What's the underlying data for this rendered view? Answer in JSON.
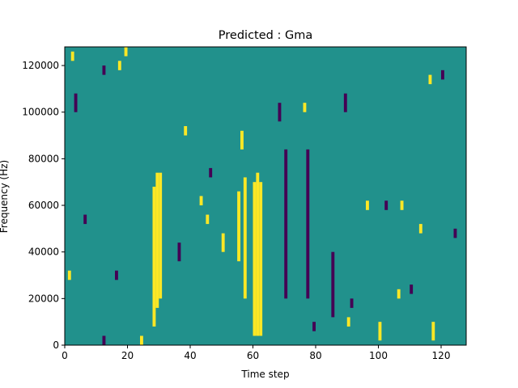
{
  "chart_data": {
    "type": "heatmap",
    "title": "Predicted : Gma",
    "xlabel": "Time step",
    "ylabel": "Frequency (Hz)",
    "xlim": [
      0,
      128
    ],
    "ylim": [
      0,
      128000
    ],
    "x_ticks": [
      0,
      20,
      40,
      60,
      80,
      100,
      120
    ],
    "y_ticks": [
      0,
      20000,
      40000,
      60000,
      80000,
      100000,
      120000
    ],
    "x_tick_labels": [
      "0",
      "20",
      "40",
      "60",
      "80",
      "100",
      "120"
    ],
    "y_tick_labels": [
      "0",
      "20000",
      "40000",
      "60000",
      "80000",
      "100000",
      "120000"
    ],
    "grid": false,
    "colormap": "viridis",
    "levels": {
      "low": "#440154",
      "mid": "#21918c",
      "high": "#fde725"
    },
    "background_level": "mid",
    "dense_columns": [
      {
        "level": "high",
        "x": 60,
        "y": [
          4000,
          70000
        ]
      },
      {
        "level": "high",
        "x": 61,
        "y": [
          4000,
          74000
        ]
      },
      {
        "level": "high",
        "x": 62,
        "y": [
          4000,
          70000
        ]
      },
      {
        "level": "high",
        "x": 28,
        "y": [
          8000,
          68000
        ]
      },
      {
        "level": "high",
        "x": 29,
        "y": [
          16000,
          74000
        ]
      },
      {
        "level": "high",
        "x": 30,
        "y": [
          20000,
          74000
        ]
      },
      {
        "level": "low",
        "x": 70,
        "y": [
          20000,
          84000
        ]
      },
      {
        "level": "low",
        "x": 77,
        "y": [
          20000,
          84000
        ]
      },
      {
        "level": "high",
        "x": 57,
        "y": [
          20000,
          72000
        ]
      },
      {
        "level": "high",
        "x": 55,
        "y": [
          36000,
          66000
        ]
      },
      {
        "level": "low",
        "x": 85,
        "y": [
          12000,
          40000
        ]
      }
    ],
    "scattered_cells": [
      {
        "level": "low",
        "x": 3,
        "y": 108000,
        "h": 8000
      },
      {
        "level": "high",
        "x": 2,
        "y": 126000,
        "h": 4000
      },
      {
        "level": "low",
        "x": 12,
        "y": 120000,
        "h": 4000
      },
      {
        "level": "high",
        "x": 19,
        "y": 128000,
        "h": 4000
      },
      {
        "level": "high",
        "x": 17,
        "y": 122000,
        "h": 4000
      },
      {
        "level": "high",
        "x": 38,
        "y": 94000,
        "h": 4000
      },
      {
        "level": "high",
        "x": 56,
        "y": 92000,
        "h": 8000
      },
      {
        "level": "low",
        "x": 68,
        "y": 104000,
        "h": 8000
      },
      {
        "level": "high",
        "x": 76,
        "y": 104000,
        "h": 4000
      },
      {
        "level": "low",
        "x": 89,
        "y": 108000,
        "h": 8000
      },
      {
        "level": "low",
        "x": 120,
        "y": 118000,
        "h": 4000
      },
      {
        "level": "high",
        "x": 116,
        "y": 116000,
        "h": 4000
      },
      {
        "level": "high",
        "x": 100,
        "y": 10000,
        "h": 8000
      },
      {
        "level": "high",
        "x": 90,
        "y": 12000,
        "h": 4000
      },
      {
        "level": "high",
        "x": 117,
        "y": 10000,
        "h": 8000
      },
      {
        "level": "low",
        "x": 91,
        "y": 20000,
        "h": 4000
      },
      {
        "level": "low",
        "x": 124,
        "y": 50000,
        "h": 4000
      },
      {
        "level": "high",
        "x": 113,
        "y": 52000,
        "h": 4000
      },
      {
        "level": "low",
        "x": 6,
        "y": 56000,
        "h": 4000
      },
      {
        "level": "high",
        "x": 1,
        "y": 32000,
        "h": 4000
      },
      {
        "level": "low",
        "x": 16,
        "y": 32000,
        "h": 4000
      },
      {
        "level": "high",
        "x": 24,
        "y": 4000,
        "h": 4000
      },
      {
        "level": "low",
        "x": 12,
        "y": 4000,
        "h": 4000
      },
      {
        "level": "high",
        "x": 50,
        "y": 48000,
        "h": 8000
      },
      {
        "level": "low",
        "x": 46,
        "y": 76000,
        "h": 4000
      },
      {
        "level": "high",
        "x": 43,
        "y": 64000,
        "h": 4000
      },
      {
        "level": "low",
        "x": 102,
        "y": 62000,
        "h": 4000
      },
      {
        "level": "high",
        "x": 107,
        "y": 62000,
        "h": 4000
      },
      {
        "level": "low",
        "x": 79,
        "y": 10000,
        "h": 4000
      },
      {
        "level": "high",
        "x": 106,
        "y": 24000,
        "h": 4000
      },
      {
        "level": "low",
        "x": 110,
        "y": 26000,
        "h": 4000
      },
      {
        "level": "high",
        "x": 96,
        "y": 62000,
        "h": 4000
      },
      {
        "level": "low",
        "x": 36,
        "y": 44000,
        "h": 8000
      },
      {
        "level": "high",
        "x": 45,
        "y": 56000,
        "h": 4000
      }
    ]
  }
}
